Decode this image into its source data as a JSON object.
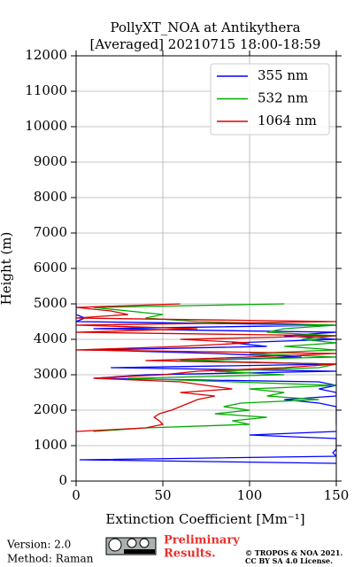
{
  "chart_data": {
    "type": "line",
    "title": [
      "PollyXT_NOA at Antikythera",
      "[Averaged] 20210715 18:00-18:59"
    ],
    "x_label": "Extinction Coefficient [Mm⁻¹]",
    "y_label": "Height (m)",
    "heights": [
      400,
      500,
      600,
      700,
      800,
      900,
      1000,
      1100,
      1200,
      1300,
      1400,
      1500,
      1600,
      1700,
      1800,
      1900,
      2000,
      2100,
      2200,
      2300,
      2400,
      2500,
      2600,
      2700,
      2800,
      2900,
      3000,
      3100,
      3200,
      3300,
      3400,
      3500,
      3600,
      3700,
      3800,
      3900,
      4000,
      4100,
      4200,
      4300,
      4400,
      4500,
      4600,
      4700,
      4800,
      4900,
      5000
    ],
    "series": [
      {
        "name": "355 nm",
        "color": "#0000ff",
        "values": [
          155,
          150,
          2,
          150,
          148,
          150,
          150,
          150,
          150,
          100,
          150,
          152,
          150,
          150,
          150,
          150,
          150,
          150,
          140,
          120,
          150,
          150,
          140,
          150,
          140,
          10,
          40,
          150,
          20,
          150,
          60,
          130,
          80,
          10,
          110,
          90,
          150,
          120,
          150,
          10,
          150,
          0,
          5,
          0,
          0,
          0,
          0
        ]
      },
      {
        "name": "532 nm",
        "color": "#00aa00",
        "values": [
          null,
          null,
          null,
          null,
          null,
          null,
          null,
          null,
          null,
          null,
          10,
          40,
          100,
          90,
          110,
          80,
          100,
          85,
          95,
          140,
          110,
          120,
          100,
          150,
          90,
          30,
          120,
          80,
          140,
          150,
          60,
          150,
          100,
          150,
          120,
          150,
          130,
          150,
          110,
          120,
          150,
          70,
          40,
          50,
          30,
          10,
          120
        ]
      },
      {
        "name": "1064 nm",
        "color": "#dd0000",
        "values": [
          null,
          null,
          null,
          null,
          null,
          null,
          null,
          null,
          null,
          null,
          0,
          40,
          50,
          48,
          45,
          48,
          55,
          60,
          65,
          70,
          80,
          60,
          90,
          75,
          60,
          10,
          50,
          70,
          120,
          150,
          40,
          100,
          150,
          0,
          60,
          100,
          60,
          150,
          0,
          70,
          0,
          150,
          0,
          30,
          20,
          0,
          60
        ]
      }
    ],
    "xlim": [
      0,
      150
    ],
    "xticks": [
      0,
      50,
      100,
      150
    ],
    "ylim": [
      0,
      12000
    ],
    "yticks": [
      0,
      1000,
      2000,
      3000,
      4000,
      5000,
      6000,
      7000,
      8000,
      9000,
      10000,
      11000,
      12000
    ],
    "grid": true,
    "legend": "upper right"
  },
  "footer": {
    "version": "Version: 2.0",
    "method": "Method: Raman",
    "notice": [
      "Preliminary",
      "Results."
    ],
    "copyright": [
      "© TROPOS & NOA 2021.",
      "CC BY SA 4.0 License."
    ]
  }
}
